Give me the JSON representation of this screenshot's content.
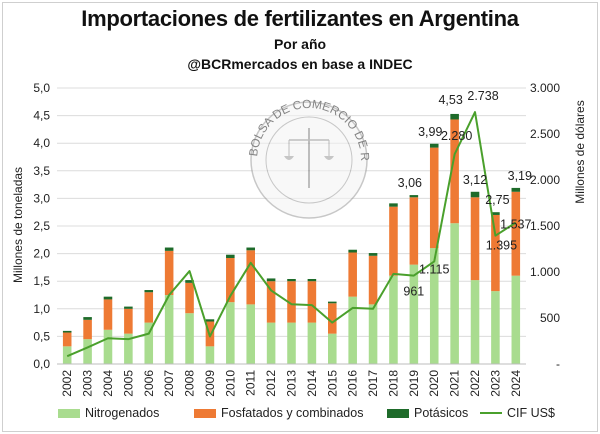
{
  "header": {
    "title": "Importaciones de fertilizantes en Argentina",
    "subtitle": "Por año",
    "source": "@BCRmercados en base a INDEC"
  },
  "seal_text": "BOLSA DE COMERCIO DE ROSARIO",
  "legend": {
    "nitro": "Nitrogenados",
    "fosfo": "Fosfatados y combinados",
    "pota": "Potásicos",
    "cif": "CIF US$"
  },
  "colors": {
    "nitro": "#a9dc8f",
    "fosfo": "#ee7a34",
    "pota": "#1e6b2a",
    "cif": "#4aa02c",
    "grid": "#dcdcdc"
  },
  "chart_data": {
    "type": "bar",
    "stacked": true,
    "categories": [
      "2002",
      "2003",
      "2004",
      "2005",
      "2006",
      "2007",
      "2008",
      "2009",
      "2010",
      "2011",
      "2012",
      "2013",
      "2014",
      "2015",
      "2016",
      "2017",
      "2018",
      "2019",
      "2020",
      "2021",
      "2022",
      "2023",
      "2024"
    ],
    "series": [
      {
        "name": "Nitrogenados",
        "axis": "left",
        "values": [
          0.32,
          0.45,
          0.62,
          0.55,
          0.75,
          1.25,
          0.92,
          0.32,
          1.12,
          1.08,
          0.75,
          0.75,
          0.75,
          0.55,
          1.22,
          1.08,
          1.6,
          1.8,
          2.1,
          2.55,
          1.52,
          1.32,
          1.6
        ]
      },
      {
        "name": "Fosfatados y combinados",
        "axis": "left",
        "values": [
          0.25,
          0.35,
          0.55,
          0.45,
          0.55,
          0.8,
          0.55,
          0.45,
          0.8,
          0.98,
          0.75,
          0.75,
          0.75,
          0.55,
          0.8,
          0.88,
          1.25,
          1.22,
          1.82,
          1.88,
          1.5,
          1.38,
          1.52
        ]
      },
      {
        "name": "Potásicos",
        "axis": "left",
        "values": [
          0.03,
          0.05,
          0.05,
          0.04,
          0.04,
          0.06,
          0.05,
          0.04,
          0.06,
          0.05,
          0.05,
          0.04,
          0.04,
          0.03,
          0.05,
          0.05,
          0.06,
          0.04,
          0.07,
          0.1,
          0.1,
          0.05,
          0.07
        ]
      },
      {
        "name": "CIF US$",
        "type": "line",
        "axis": "right",
        "values": [
          85,
          180,
          280,
          270,
          330,
          750,
          1010,
          300,
          740,
          1100,
          800,
          650,
          640,
          450,
          610,
          600,
          980,
          961,
          1115,
          2280,
          2738,
          1395,
          1537
        ]
      }
    ],
    "totals_labeled": {
      "2019": "3,06",
      "2020": "3,99",
      "2021": "4,53",
      "2022": "3,12",
      "2023": "2,75",
      "2024": "3,19"
    },
    "cif_labeled": {
      "2019": "961",
      "2020": "1.115",
      "2021": "2.280",
      "2022": "2.738",
      "2023": "1.395",
      "2024": "1.537"
    },
    "ylabel": "Millones de toneladas",
    "y2label": "Millones de dólares",
    "ylim": [
      0,
      5
    ],
    "y2lim": [
      0,
      3000
    ],
    "yticks": [
      "0,0",
      "0,5",
      "1,0",
      "1,5",
      "2,0",
      "2,5",
      "3,0",
      "3,5",
      "4,0",
      "4,5",
      "5,0"
    ],
    "y2ticks": [
      "-",
      "500",
      "1.000",
      "1.500",
      "2.000",
      "2.500",
      "3.000"
    ],
    "grid": true,
    "legend_position": "bottom"
  }
}
